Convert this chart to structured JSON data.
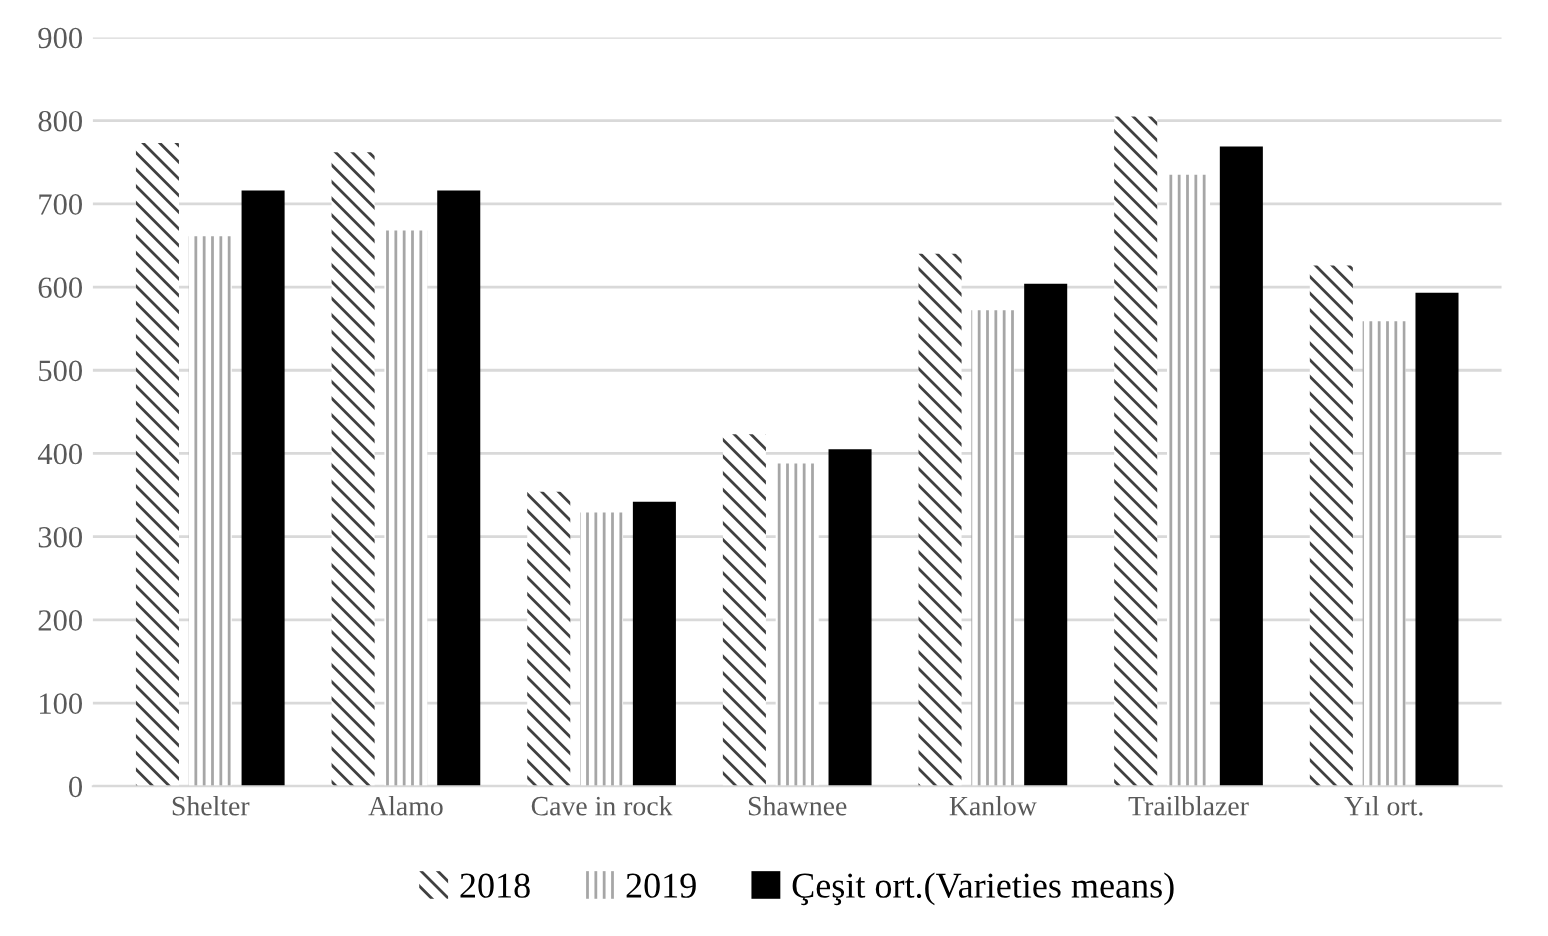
{
  "chart_data": {
    "type": "bar",
    "categories": [
      "Shelter",
      "Alamo",
      "Cave in rock",
      "Shawnee",
      "Kanlow",
      "Trailblazer",
      "Yıl ort."
    ],
    "series": [
      {
        "name": "2018",
        "color": "#404040",
        "values": [
          773,
          762,
          354,
          423,
          640,
          805,
          626
        ]
      },
      {
        "name": "2019",
        "color": "#a6a6a6",
        "values": [
          661,
          668,
          329,
          388,
          572,
          735,
          559
        ]
      },
      {
        "name": "Çeşit ort.(Varieties means)",
        "color": "#000000",
        "values": [
          716,
          716,
          342,
          405,
          604,
          769,
          593
        ]
      }
    ],
    "ylim": [
      0,
      900
    ],
    "yticks": [
      0,
      100,
      200,
      300,
      400,
      500,
      600,
      700,
      800,
      900
    ],
    "grid": "y",
    "legend": "bottom"
  }
}
